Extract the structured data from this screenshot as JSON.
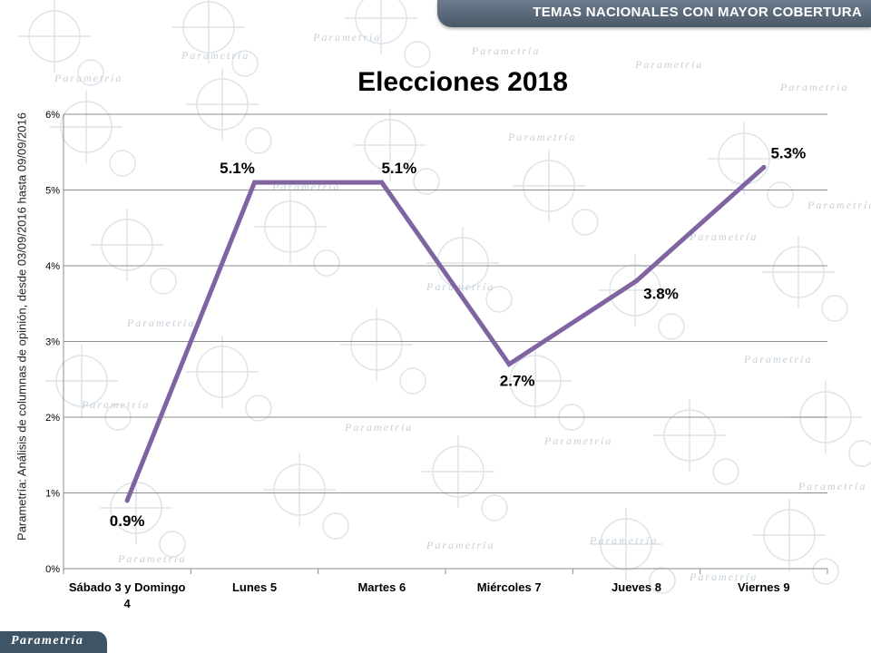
{
  "header": {
    "title": "TEMAS NACIONALES CON MAYOR COBERTURA"
  },
  "source_note": "Parametría: Análisis de columnas de opinión, desde 03/09/2016 hasta  09/09/2016",
  "footer": {
    "logo_text": "Parametría",
    "watermark_text": "Parametría"
  },
  "chart_data": {
    "type": "line",
    "title": "Elecciones 2018",
    "categories": [
      "Sábado 3 y Domingo 4",
      "Lunes 5",
      "Martes 6",
      "Miércoles 7",
      "Jueves 8",
      "Viernes 9"
    ],
    "values": [
      0.9,
      5.1,
      5.1,
      2.7,
      3.8,
      5.3
    ],
    "data_labels": [
      "0.9%",
      "5.1%",
      "5.1%",
      "2.7%",
      "3.8%",
      "5.3%"
    ],
    "y_ticks": [
      "0%",
      "1%",
      "2%",
      "3%",
      "4%",
      "5%",
      "6%"
    ],
    "ylim": [
      0,
      6
    ],
    "grid": true,
    "legend": false,
    "line_color": "#8064a2"
  }
}
